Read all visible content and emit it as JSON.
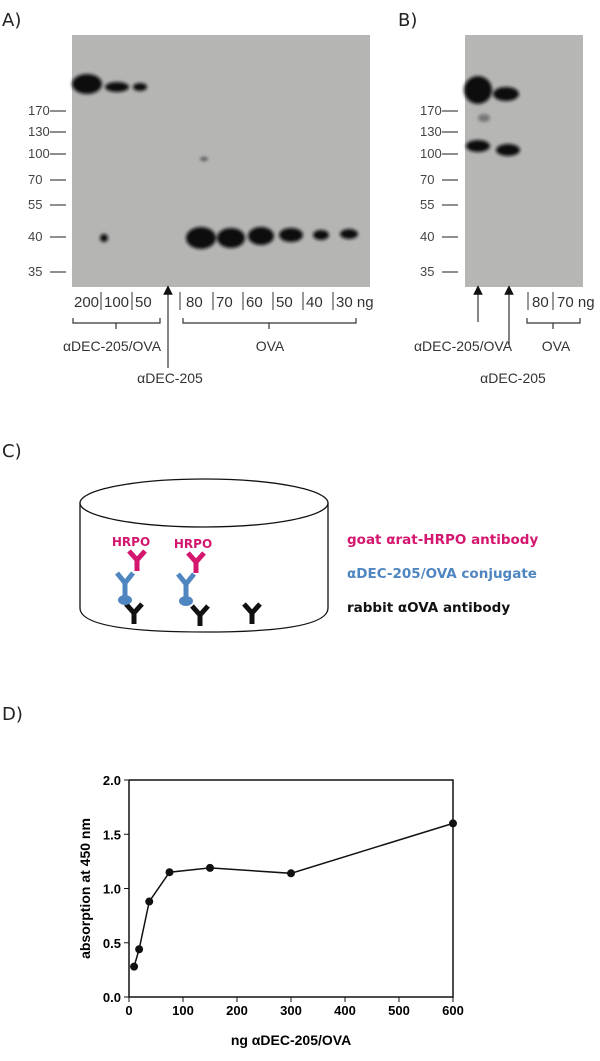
{
  "panels": {
    "a": {
      "label": "A)",
      "markers": [
        "170",
        "130",
        "100",
        "70",
        "55",
        "40",
        "35"
      ],
      "lanes": [
        "200",
        "100",
        "50",
        "80",
        "70",
        "60",
        "50",
        "40",
        "30 ng"
      ],
      "group1": "αDEC-205/OVA",
      "arrow_label": "αDEC-205",
      "group2": "OVA"
    },
    "b": {
      "label": "B)",
      "markers": [
        "170",
        "130",
        "100",
        "70",
        "55",
        "40",
        "35"
      ],
      "lanes": [
        "80",
        "70 ng"
      ],
      "arrow1_label": "αDEC-205/OVA",
      "arrow2_label": "αDEC-205",
      "group": "OVA"
    },
    "c": {
      "label": "C)",
      "hrpo1": "HRPO",
      "hrpo2": "HRPO",
      "legend": [
        {
          "text": "goat αrat-HRPO antibody",
          "color": "#d4166e"
        },
        {
          "text": "αDEC-205/OVA conjugate",
          "color": "#4f86c0"
        },
        {
          "text": "rabbit αOVA antibody",
          "color": "#111111"
        }
      ]
    },
    "d": {
      "label": "D)"
    }
  },
  "chart_data": {
    "type": "line",
    "xlabel": "ng αDEC-205/OVA",
    "ylabel": "absorption at 450 nm",
    "xlim": [
      0,
      600
    ],
    "ylim": [
      0,
      2.0
    ],
    "xticks": [
      "0",
      "100",
      "200",
      "300",
      "400",
      "500",
      "600"
    ],
    "yticks": [
      "0.0",
      "0.5",
      "1.0",
      "1.5",
      "2.0"
    ],
    "x": [
      9.4,
      18.75,
      37.5,
      75,
      150,
      300,
      600
    ],
    "y": [
      0.28,
      0.44,
      0.88,
      1.15,
      1.19,
      1.14,
      1.6
    ],
    "grid": false
  }
}
